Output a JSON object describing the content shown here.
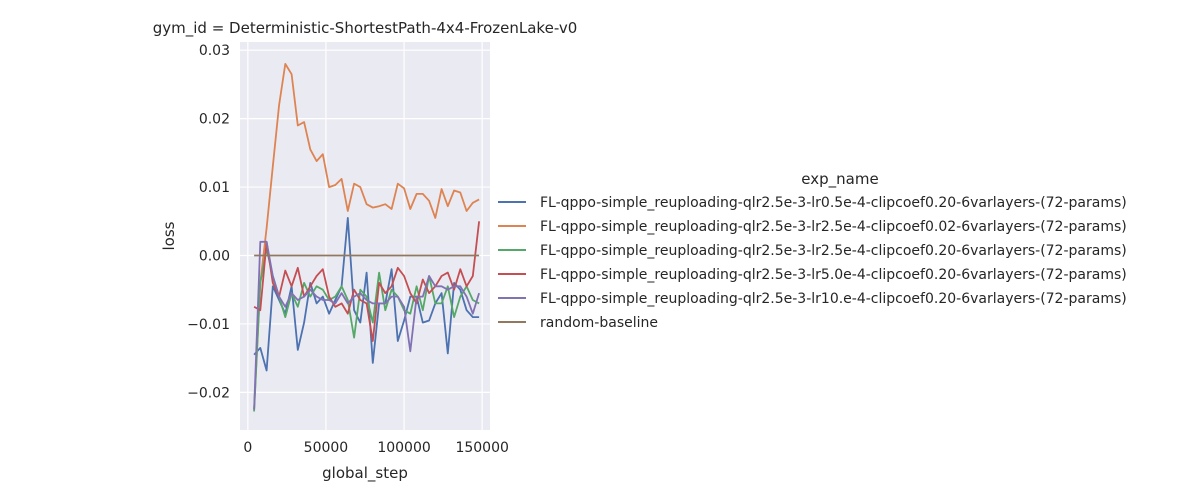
{
  "chart_data": {
    "type": "line",
    "title": "gym_id = Deterministic-ShortestPath-4x4-FrozenLake-v0",
    "xlabel": "global_step",
    "ylabel": "loss",
    "xlim": [
      -5000,
      155000
    ],
    "ylim": [
      -0.0255,
      0.0312
    ],
    "xticks": [
      0,
      50000,
      100000,
      150000
    ],
    "xtick_labels": [
      "0",
      "50000",
      "100000",
      "150000"
    ],
    "yticks": [
      -0.02,
      -0.01,
      0.0,
      0.01,
      0.02,
      0.03
    ],
    "ytick_labels": [
      "−0.02",
      "−0.01",
      "0.00",
      "0.01",
      "0.02",
      "0.03"
    ],
    "grid": true,
    "legend_title": "exp_name",
    "legend_placement": "right",
    "series": [
      {
        "name": "FL-qppo-simple_reuploading-qlr2.5e-3-lr0.5e-4-clipcoef0.20-6varlayers-(72-params)",
        "color": "#4c72b0",
        "x": [
          4000,
          8000,
          12000,
          16000,
          20000,
          24000,
          28000,
          32000,
          36000,
          40000,
          44000,
          48000,
          52000,
          56000,
          60000,
          64000,
          68000,
          72000,
          76000,
          80000,
          84000,
          88000,
          92000,
          96000,
          100000,
          104000,
          108000,
          112000,
          116000,
          120000,
          124000,
          128000,
          132000,
          136000,
          140000,
          144000,
          148000
        ],
        "y": [
          -0.0145,
          -0.0135,
          -0.0168,
          -0.0045,
          -0.0065,
          -0.0085,
          -0.0045,
          -0.0138,
          -0.0098,
          -0.004,
          -0.007,
          -0.006,
          -0.0085,
          -0.0065,
          -0.0045,
          0.0055,
          -0.008,
          -0.0098,
          -0.0025,
          -0.0157,
          -0.007,
          -0.007,
          -0.002,
          -0.0125,
          -0.0095,
          -0.006,
          -0.006,
          -0.0098,
          -0.0095,
          -0.007,
          -0.0055,
          -0.0143,
          -0.004,
          -0.005,
          -0.008,
          -0.009,
          -0.009
        ]
      },
      {
        "name": "FL-qppo-simple_reuploading-qlr2.5e-3-lr2.5e-4-clipcoef0.02-6varlayers-(72-params)",
        "color": "#dd8452",
        "x": [
          4000,
          8000,
          12000,
          16000,
          20000,
          24000,
          28000,
          32000,
          36000,
          40000,
          44000,
          48000,
          52000,
          56000,
          60000,
          64000,
          68000,
          72000,
          76000,
          80000,
          84000,
          88000,
          92000,
          96000,
          100000,
          104000,
          108000,
          112000,
          116000,
          120000,
          124000,
          128000,
          132000,
          136000,
          140000,
          144000,
          148000
        ],
        "y": [
          -0.0225,
          -0.004,
          0.004,
          0.013,
          0.022,
          0.028,
          0.0265,
          0.019,
          0.0195,
          0.0155,
          0.0138,
          0.0148,
          0.01,
          0.0103,
          0.0112,
          0.0065,
          0.0105,
          0.01,
          0.0075,
          0.007,
          0.0072,
          0.0075,
          0.0068,
          0.0105,
          0.0098,
          0.0068,
          0.009,
          0.009,
          0.008,
          0.0055,
          0.0097,
          0.0072,
          0.0095,
          0.0092,
          0.0065,
          0.0077,
          0.0082
        ]
      },
      {
        "name": "FL-qppo-simple_reuploading-qlr2.5e-3-lr2.5e-4-clipcoef0.20-6varlayers-(72-params)",
        "color": "#55a868",
        "x": [
          4000,
          8000,
          12000,
          16000,
          20000,
          24000,
          28000,
          32000,
          36000,
          40000,
          44000,
          48000,
          52000,
          56000,
          60000,
          64000,
          68000,
          72000,
          76000,
          80000,
          84000,
          88000,
          92000,
          96000,
          100000,
          104000,
          108000,
          112000,
          116000,
          120000,
          124000,
          128000,
          132000,
          136000,
          140000,
          144000,
          148000
        ],
        "y": [
          -0.0228,
          -0.004,
          0.001,
          -0.003,
          -0.006,
          -0.009,
          -0.0055,
          -0.0075,
          -0.004,
          -0.006,
          -0.0045,
          -0.005,
          -0.0065,
          -0.006,
          -0.0045,
          -0.0065,
          -0.012,
          -0.005,
          -0.006,
          -0.0098,
          -0.0025,
          -0.008,
          -0.005,
          -0.006,
          -0.008,
          -0.0085,
          -0.0045,
          -0.008,
          -0.003,
          -0.007,
          -0.007,
          -0.0045,
          -0.009,
          -0.006,
          -0.0045,
          -0.0065,
          -0.007
        ]
      },
      {
        "name": "FL-qppo-simple_reuploading-qlr2.5e-3-lr5.0e-4-clipcoef0.20-6varlayers-(72-params)",
        "color": "#c44e52",
        "x": [
          4000,
          8000,
          12000,
          16000,
          20000,
          24000,
          28000,
          32000,
          36000,
          40000,
          44000,
          48000,
          52000,
          56000,
          60000,
          64000,
          68000,
          72000,
          76000,
          80000,
          84000,
          88000,
          92000,
          96000,
          100000,
          104000,
          108000,
          112000,
          116000,
          120000,
          124000,
          128000,
          132000,
          136000,
          140000,
          144000,
          148000
        ],
        "y": [
          -0.0075,
          -0.008,
          0.002,
          -0.004,
          -0.006,
          -0.0022,
          -0.0045,
          -0.0018,
          -0.006,
          -0.0045,
          -0.003,
          -0.002,
          -0.006,
          -0.0075,
          -0.007,
          -0.0085,
          -0.005,
          -0.0065,
          -0.007,
          -0.0125,
          -0.004,
          -0.0055,
          -0.0045,
          -0.0018,
          -0.003,
          -0.0055,
          -0.007,
          -0.0035,
          -0.0055,
          -0.0045,
          -0.003,
          -0.0025,
          -0.005,
          -0.002,
          -0.0045,
          -0.003,
          0.005
        ]
      },
      {
        "name": "FL-qppo-simple_reuploading-qlr2.5e-3-lr10.e-4-clipcoef0.20-6varlayers-(72-params)",
        "color": "#8172b3",
        "x": [
          4000,
          8000,
          12000,
          16000,
          20000,
          24000,
          28000,
          32000,
          36000,
          40000,
          44000,
          48000,
          52000,
          56000,
          60000,
          64000,
          68000,
          72000,
          76000,
          80000,
          84000,
          88000,
          92000,
          96000,
          100000,
          104000,
          108000,
          112000,
          116000,
          120000,
          124000,
          128000,
          132000,
          136000,
          140000,
          144000,
          148000
        ],
        "y": [
          -0.0225,
          0.002,
          0.002,
          -0.003,
          -0.006,
          -0.0075,
          -0.0055,
          -0.0065,
          -0.006,
          -0.005,
          -0.006,
          -0.0065,
          -0.0065,
          -0.007,
          -0.0055,
          -0.007,
          -0.006,
          -0.0055,
          -0.0065,
          -0.007,
          -0.007,
          -0.007,
          -0.006,
          -0.006,
          -0.0075,
          -0.014,
          -0.006,
          -0.006,
          -0.003,
          -0.0045,
          -0.0045,
          -0.005,
          -0.0045,
          -0.0045,
          -0.006,
          -0.0085,
          -0.0055
        ]
      },
      {
        "name": "random-baseline",
        "color": "#937860",
        "x": [
          4000,
          148000
        ],
        "y": [
          0.0,
          0.0
        ]
      }
    ]
  }
}
